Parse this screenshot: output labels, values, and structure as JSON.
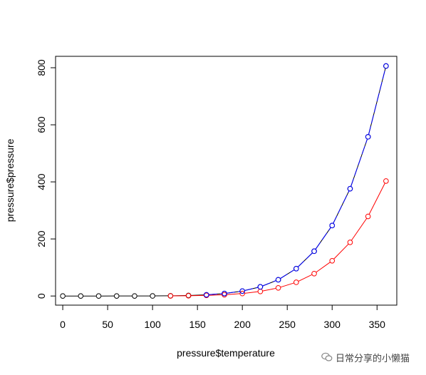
{
  "chart_data": {
    "type": "line",
    "xlabel": "pressure$temperature",
    "ylabel": "pressure$pressure",
    "xlim": [
      -8,
      372
    ],
    "ylim": [
      -32,
      840
    ],
    "x_ticks": [
      0,
      50,
      100,
      150,
      200,
      250,
      300,
      350
    ],
    "y_ticks": [
      0,
      200,
      400,
      600,
      800
    ],
    "grid": false,
    "series": [
      {
        "color": "#000000",
        "line": "solid",
        "markers": "open-circle",
        "x": [
          0,
          20,
          40,
          60,
          80,
          100,
          120,
          140,
          160,
          180,
          200,
          220,
          240,
          260,
          280,
          300,
          320,
          340,
          360
        ],
        "y": [
          0.0002,
          0.0012,
          0.006,
          0.03,
          0.09,
          0.27,
          0.75,
          1.85,
          4.2,
          8.8,
          17.3,
          32.1,
          57,
          96,
          157,
          247,
          376,
          558,
          806
        ]
      },
      {
        "color": "#ff0000",
        "line": "solid",
        "markers": "open-circle",
        "x": [
          120,
          140,
          160,
          180,
          200,
          220,
          240,
          260,
          280,
          300,
          320,
          340,
          360
        ],
        "y": [
          0.38,
          0.93,
          2.1,
          4.4,
          8.7,
          16,
          28.5,
          48,
          78.5,
          123.5,
          188,
          279,
          403
        ]
      },
      {
        "color": "#0000ff",
        "line": "dashed",
        "markers": "open-circle",
        "x": [
          160,
          180,
          200,
          220,
          240,
          260,
          280,
          300,
          320,
          340,
          360
        ],
        "y": [
          4.2,
          8.8,
          17.3,
          32.1,
          57,
          96,
          157,
          247,
          376,
          558,
          806
        ]
      }
    ]
  },
  "watermark": {
    "text": "日常分享的小懒猫"
  }
}
